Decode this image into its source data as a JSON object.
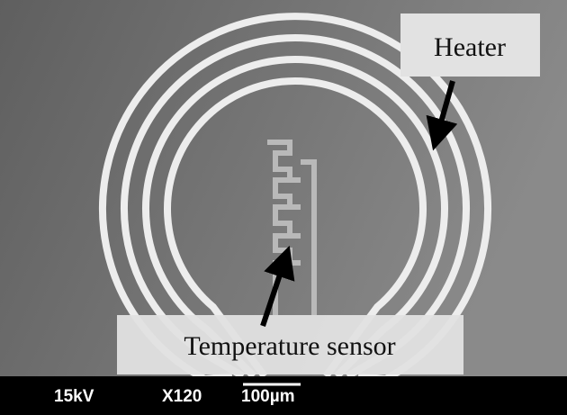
{
  "labels": {
    "heater": "Heater",
    "sensor": "Temperature sensor"
  },
  "status_bar": {
    "voltage": "15kV",
    "magnification": "X120",
    "scale": "100µm"
  }
}
